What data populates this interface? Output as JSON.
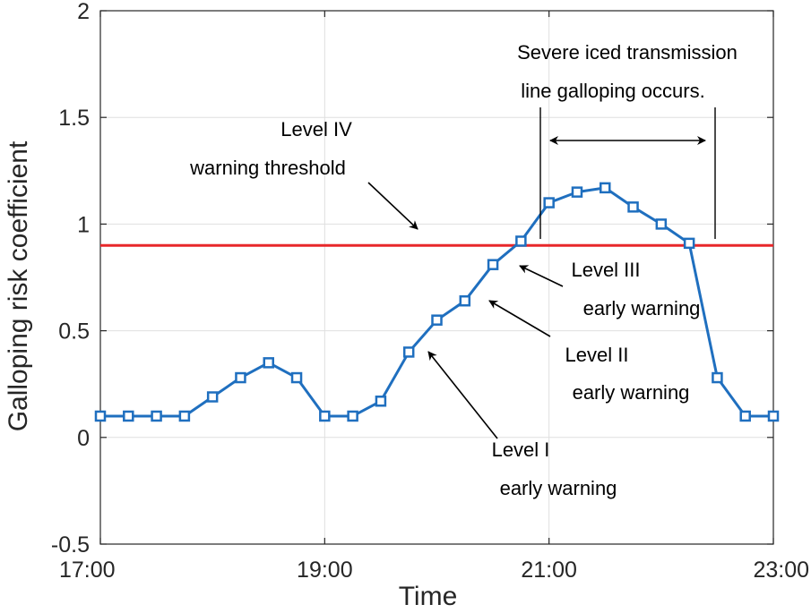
{
  "chart_data": {
    "type": "line",
    "xlabel": "Time",
    "ylabel": "Galloping risk coefficient",
    "xlim": [
      17,
      23
    ],
    "ylim": [
      -0.5,
      2
    ],
    "x_ticks": [
      17,
      19,
      21,
      23
    ],
    "x_tick_labels": [
      "17:00",
      "19:00",
      "21:00",
      "23:00"
    ],
    "y_ticks": [
      -0.5,
      0,
      0.5,
      1,
      1.5,
      2
    ],
    "y_tick_labels": [
      "-0.5",
      "0",
      "0.5",
      "1",
      "1.5",
      "2"
    ],
    "grid": true,
    "series": [
      {
        "name": "Galloping risk coefficient",
        "color": "#1f6fbf",
        "marker": "square",
        "x": [
          17.0,
          17.25,
          17.5,
          17.75,
          18.0,
          18.25,
          18.5,
          18.75,
          19.0,
          19.25,
          19.5,
          19.75,
          20.0,
          20.25,
          20.5,
          20.75,
          21.0,
          21.25,
          21.5,
          21.75,
          22.0,
          22.25,
          22.5,
          22.75,
          23.0
        ],
        "values": [
          0.1,
          0.1,
          0.1,
          0.1,
          0.19,
          0.28,
          0.35,
          0.28,
          0.1,
          0.1,
          0.17,
          0.4,
          0.55,
          0.64,
          0.81,
          0.92,
          1.1,
          1.15,
          1.17,
          1.08,
          1.0,
          0.91,
          0.28,
          0.1,
          0.1
        ]
      }
    ],
    "threshold": {
      "value": 0.9,
      "color": "#e8272a"
    },
    "annotations": {
      "level4": {
        "line1": "Level IV",
        "line2": "warning threshold"
      },
      "level3": {
        "line1": "Level III",
        "line2": "early warning"
      },
      "level2": {
        "line1": "Level II",
        "line2": "early warning"
      },
      "level1": {
        "line1": "Level I",
        "line2": "early warning"
      },
      "severe": {
        "line1": "Severe iced transmission",
        "line2": "line galloping occurs."
      }
    }
  }
}
